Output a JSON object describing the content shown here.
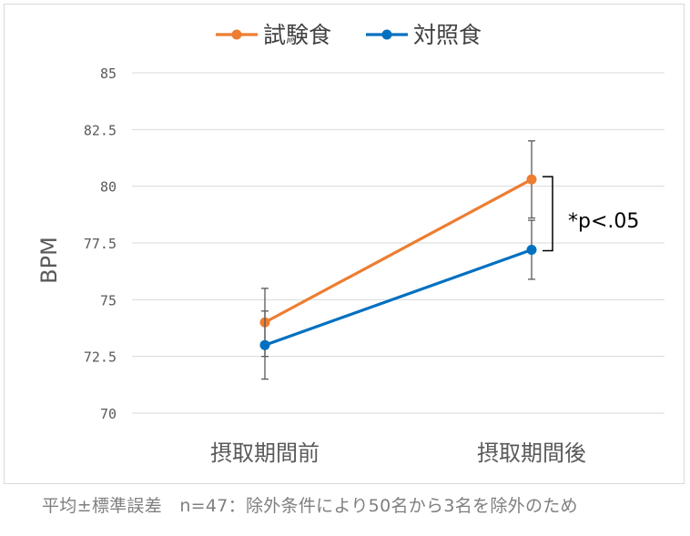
{
  "chart_data": {
    "type": "line",
    "categories": [
      "摂取期間前",
      "摂取期間後"
    ],
    "series": [
      {
        "name": "試験食",
        "color": "#ED7D31",
        "values": [
          74.0,
          80.3
        ],
        "errors": [
          1.5,
          1.7
        ]
      },
      {
        "name": "対照食",
        "color": "#0070C0",
        "values": [
          73.0,
          77.2
        ],
        "errors": [
          1.5,
          1.3
        ]
      }
    ],
    "ylabel": "BPM",
    "xlabel": "",
    "ylim": [
      70,
      85
    ],
    "yticks": [
      "70",
      "72.5",
      "75",
      "77.5",
      "80",
      "82.5",
      "85"
    ],
    "ytick_values": [
      70,
      72.5,
      75,
      77.5,
      80,
      82.5,
      85
    ],
    "grid": true,
    "legend_position": "top",
    "annotation": "*p<.05"
  },
  "footnote": "平均±標準誤差　n=47：除外条件により50名から3名を除外のため"
}
